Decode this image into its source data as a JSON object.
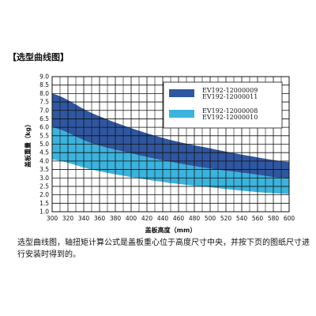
{
  "section_title": "【选型曲线图】",
  "caption": "选型曲线图，轴扭矩计算公式是盖板重心位于高度尺寸中央，并按下页的图纸尺寸进行安装时得到的。",
  "chart_data": {
    "type": "area",
    "title": "",
    "xlabel": "盖板高度（mm）",
    "ylabel": "盖板重量（kg）",
    "xlim": [
      300,
      600
    ],
    "ylim": [
      1.0,
      9.0
    ],
    "x_ticks": [
      "300",
      "320",
      "340",
      "360",
      "380",
      "400",
      "420",
      "440",
      "460",
      "480",
      "500",
      "520",
      "540",
      "560",
      "580",
      "600"
    ],
    "y_ticks": [
      "9.0",
      "8.5",
      "8.0",
      "7.5",
      "7.0",
      "6.5",
      "6.0",
      "5.5",
      "5.0",
      "4.5",
      "4.0",
      "3.5",
      "3.0",
      "2.5",
      "2.0",
      "1.5",
      "1.0"
    ],
    "grid": true,
    "colors": {
      "dark_band": "#2f56a0",
      "light_band": "#3bb3dd",
      "grid": "#111111"
    },
    "series": [
      {
        "name": "EV192-12000009\nEV192-12000011",
        "color": "#2f56a0",
        "x": [
          300,
          350,
          400,
          450,
          500,
          550,
          600
        ],
        "upper": [
          8.0,
          6.85,
          5.95,
          5.25,
          4.75,
          4.3,
          3.95
        ],
        "lower": [
          6.0,
          5.05,
          4.45,
          3.95,
          3.55,
          3.25,
          2.95
        ]
      },
      {
        "name": "EV192-12000008\nEV192-12000010",
        "color": "#3bb3dd",
        "x": [
          300,
          350,
          400,
          450,
          500,
          550,
          600
        ],
        "upper": [
          6.0,
          5.05,
          4.45,
          3.95,
          3.55,
          3.25,
          2.95
        ],
        "lower": [
          4.1,
          3.5,
          3.05,
          2.7,
          2.45,
          2.2,
          2.05
        ]
      }
    ],
    "legend_position": "top-right"
  }
}
